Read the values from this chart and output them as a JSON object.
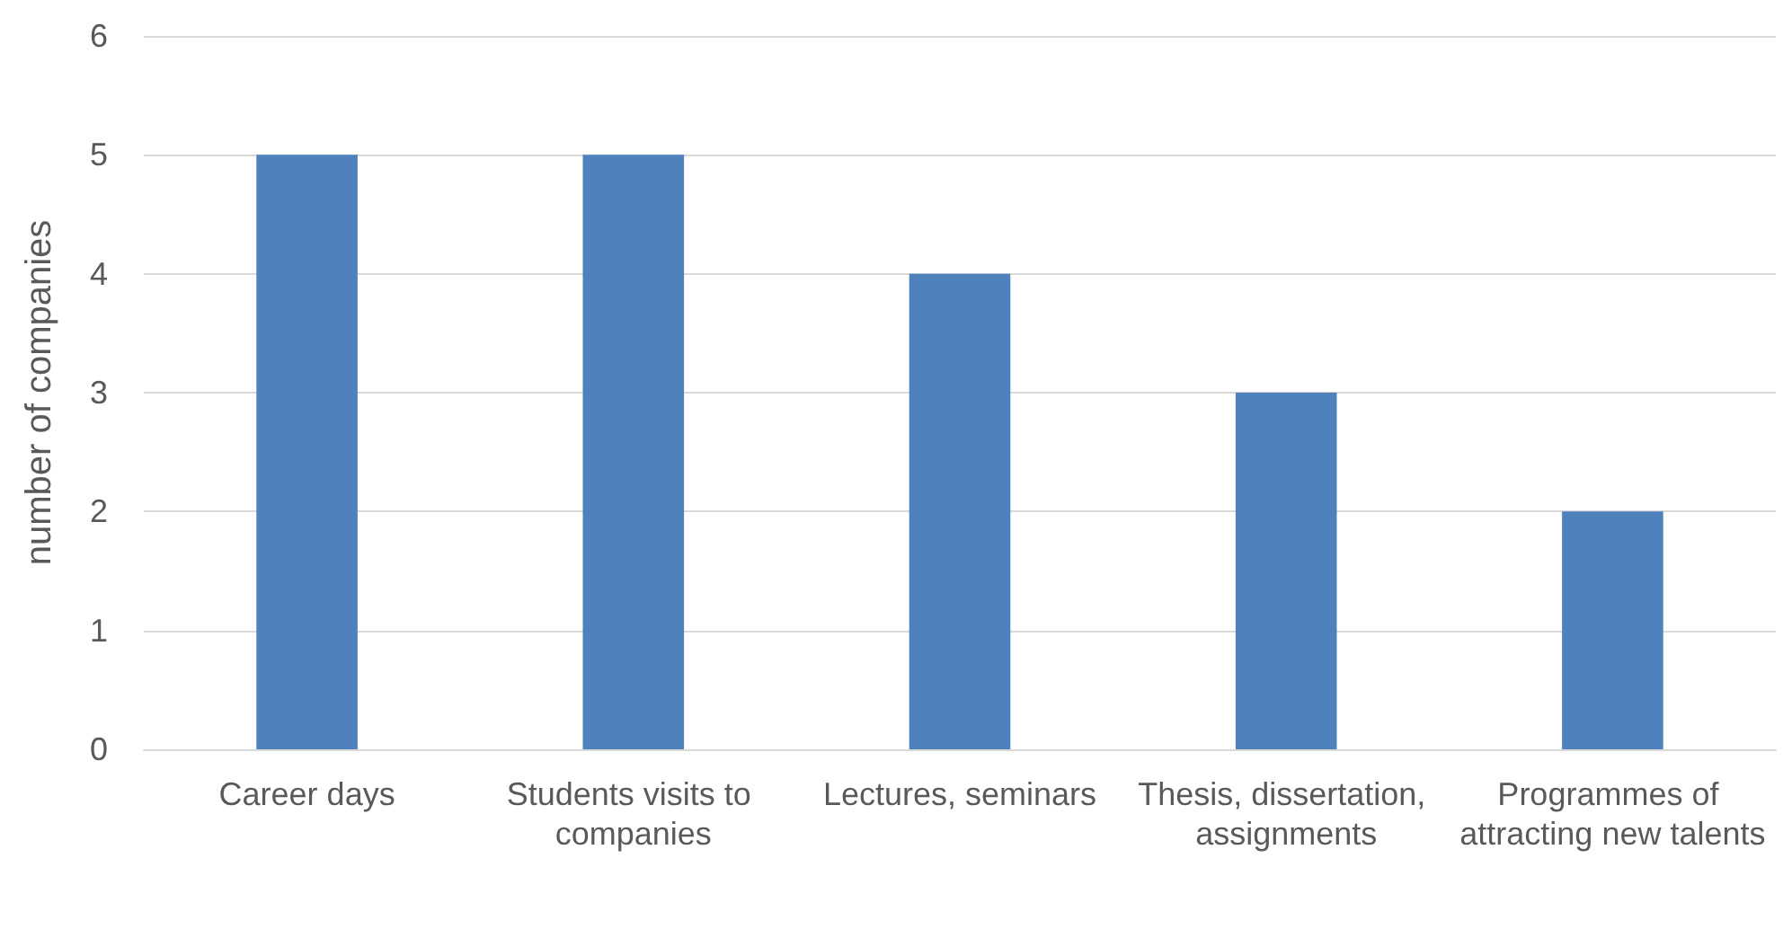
{
  "chart_data": {
    "type": "bar",
    "ylabel": "number of companies",
    "categories": [
      "Career days",
      "Students visits to companies",
      "Lectures, seminars",
      "Thesis, dissertation, assignments",
      "Programmes of attracting new talents"
    ],
    "values": [
      5,
      5,
      4,
      3,
      2
    ],
    "color": "#4f81bd",
    "ylim": [
      0,
      6
    ],
    "yticks": [
      0,
      1,
      2,
      3,
      4,
      5,
      6
    ],
    "grid": "y"
  }
}
